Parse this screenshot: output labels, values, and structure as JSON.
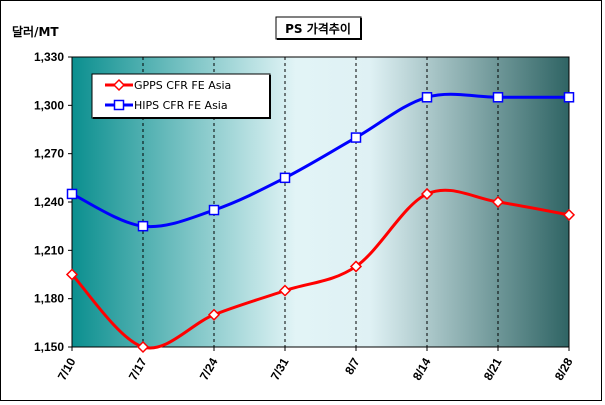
{
  "chart_data": {
    "type": "line",
    "title": "PS 가격추이",
    "ylabel": "달러/MT",
    "xlabel": "",
    "categories": [
      "7/10",
      "7/17",
      "7/24",
      "7/31",
      "8/7",
      "8/14",
      "8/21",
      "8/28"
    ],
    "ylim": [
      1150,
      1330
    ],
    "yticks": [
      1150,
      1180,
      1210,
      1240,
      1270,
      1300,
      1330
    ],
    "ytick_labels": [
      "1,150",
      "1,180",
      "1,210",
      "1,240",
      "1,270",
      "1,300",
      "1,330"
    ],
    "grid": "vertical",
    "legend_position": "top-left",
    "series": [
      {
        "name": "GPPS CFR FE Asia",
        "values": [
          1195,
          1150,
          1170,
          1185,
          1200,
          1245,
          1240,
          1232
        ],
        "color": "#ff0000",
        "marker": "diamond"
      },
      {
        "name": "HIPS CFR FE Asia",
        "values": [
          1245,
          1225,
          1235,
          1255,
          1280,
          1305,
          1305,
          1305
        ],
        "color": "#0000ff",
        "marker": "square"
      }
    ]
  }
}
